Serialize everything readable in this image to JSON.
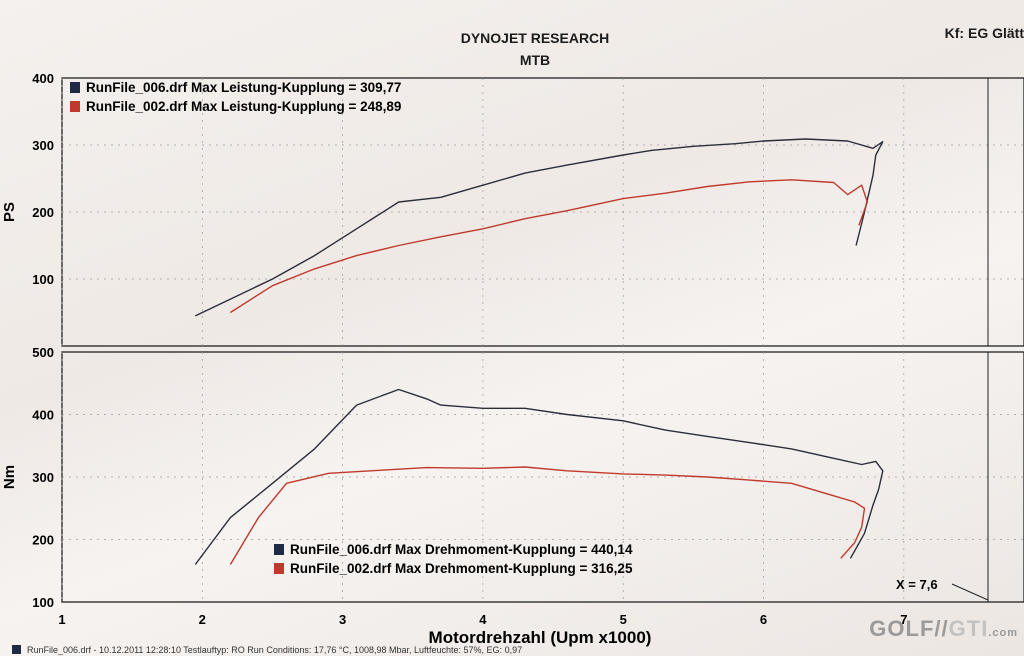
{
  "header": {
    "title": "DYNOJET RESEARCH",
    "subtitle": "MTB",
    "corner_text": "Kf: EG  Glätt"
  },
  "footer_text": "RunFile_006.drf - 10.12.2011 12:28:10  Testlauftyp: RO  Run Conditions: 17,76 °C, 1008,98 Mbar,  Luftfeuchte: 57%, EG: 0,97",
  "watermark": {
    "part1": "GOLF",
    "part2": "GTI",
    "suffix": ".com"
  },
  "colors": {
    "series_006": "#2b2e3a",
    "series_002": "#c0392b",
    "legend_006": "#1f2a44",
    "legend_002": "#c0392b",
    "axis": "#222222",
    "grid": "#9a9a9a"
  },
  "chart_data": [
    {
      "type": "line",
      "ylabel": "PS",
      "xlabel": "",
      "ylim": [
        0,
        400
      ],
      "yticks": [
        100,
        200,
        300,
        400
      ],
      "xlim": [
        1,
        7.6
      ],
      "legend_placement": "top-left",
      "series": [
        {
          "name": "RunFile_006.drf Max Leistung-Kupplung = 309,77",
          "x": [
            1.95,
            2.2,
            2.5,
            2.8,
            3.1,
            3.4,
            3.7,
            4.0,
            4.3,
            4.6,
            5.0,
            5.2,
            5.5,
            5.8,
            6.0,
            6.3,
            6.6,
            6.78,
            6.85,
            6.8,
            6.78,
            6.72,
            6.66
          ],
          "y": [
            45,
            70,
            100,
            135,
            175,
            215,
            222,
            240,
            258,
            270,
            285,
            292,
            298,
            302,
            306,
            309,
            306,
            295,
            305,
            285,
            255,
            200,
            150
          ]
        },
        {
          "name": "RunFile_002.drf Max Leistung-Kupplung = 248,89",
          "x": [
            2.2,
            2.5,
            2.8,
            3.1,
            3.4,
            3.7,
            4.0,
            4.3,
            4.6,
            5.0,
            5.3,
            5.6,
            5.9,
            6.2,
            6.5,
            6.6,
            6.7,
            6.74,
            6.68
          ],
          "y": [
            50,
            90,
            115,
            135,
            150,
            163,
            175,
            190,
            202,
            220,
            228,
            238,
            245,
            248,
            244,
            226,
            240,
            215,
            180
          ]
        }
      ]
    },
    {
      "type": "line",
      "ylabel": "Nm",
      "xlabel": "Motordrehzahl (Upm x1000)",
      "ylim": [
        100,
        500
      ],
      "yticks": [
        100,
        200,
        300,
        400,
        500
      ],
      "xlim": [
        1,
        7.6
      ],
      "xticks": [
        1,
        2,
        3,
        4,
        5,
        6,
        7
      ],
      "legend_placement": "bottom-center",
      "cursor_label": "X = 7,6",
      "series": [
        {
          "name": "RunFile_006.drf Max Drehmoment-Kupplung = 440,14",
          "x": [
            1.95,
            2.2,
            2.5,
            2.8,
            3.1,
            3.4,
            3.6,
            3.7,
            4.0,
            4.3,
            4.6,
            5.0,
            5.3,
            5.6,
            5.9,
            6.2,
            6.5,
            6.7,
            6.8,
            6.85,
            6.82,
            6.78,
            6.72,
            6.62
          ],
          "y": [
            160,
            235,
            290,
            345,
            415,
            440,
            425,
            415,
            410,
            410,
            400,
            390,
            375,
            365,
            355,
            345,
            330,
            320,
            325,
            310,
            280,
            255,
            210,
            170
          ]
        },
        {
          "name": "RunFile_002.drf Max Drehmoment-Kupplung = 316,25",
          "x": [
            2.2,
            2.4,
            2.6,
            2.9,
            3.2,
            3.6,
            4.0,
            4.3,
            4.6,
            5.0,
            5.3,
            5.6,
            5.9,
            6.2,
            6.5,
            6.65,
            6.72,
            6.7,
            6.65,
            6.55
          ],
          "y": [
            160,
            235,
            290,
            306,
            310,
            315,
            314,
            316,
            310,
            305,
            303,
            300,
            295,
            290,
            270,
            260,
            250,
            220,
            195,
            170
          ]
        }
      ]
    }
  ]
}
